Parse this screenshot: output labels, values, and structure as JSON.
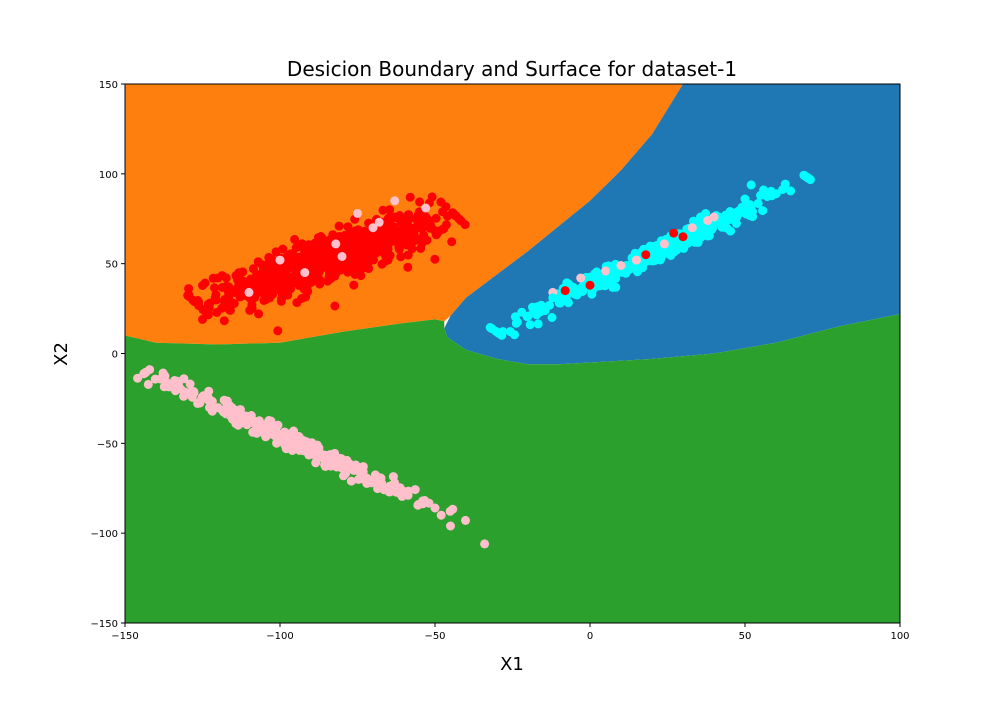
{
  "chart_data": {
    "type": "scatter",
    "title": "Desicion Boundary and Surface for dataset-1",
    "xlabel": "X1",
    "ylabel": "X2",
    "xlim": [
      -150,
      100
    ],
    "ylim": [
      -150,
      150
    ],
    "x_ticks": [
      -150,
      -100,
      -50,
      0,
      50,
      100
    ],
    "y_ticks": [
      -150,
      -100,
      -50,
      0,
      50,
      100,
      150
    ],
    "x_tick_labels": [
      "−150",
      "−100",
      "−50",
      "0",
      "50",
      "100"
    ],
    "y_tick_labels": [
      "−150",
      "−100",
      "−50",
      "0",
      "50",
      "100",
      "150"
    ],
    "grid": false,
    "regions": [
      {
        "color": "#ff7f0e",
        "polygon": [
          [
            -150,
            150
          ],
          [
            -150,
            10
          ],
          [
            -140,
            6
          ],
          [
            -120,
            5
          ],
          [
            -100,
            6
          ],
          [
            -80,
            12
          ],
          [
            -60,
            17
          ],
          [
            -50,
            19
          ],
          [
            -47,
            18
          ],
          [
            -45,
            21
          ],
          [
            -40,
            31
          ],
          [
            -30,
            44
          ],
          [
            -20,
            57
          ],
          [
            -10,
            71
          ],
          [
            0,
            85
          ],
          [
            10,
            102
          ],
          [
            20,
            122
          ],
          [
            30,
            150
          ]
        ]
      },
      {
        "color": "#1f77b4",
        "polygon": [
          [
            30,
            150
          ],
          [
            20,
            122
          ],
          [
            10,
            102
          ],
          [
            0,
            85
          ],
          [
            -10,
            71
          ],
          [
            -20,
            57
          ],
          [
            -30,
            44
          ],
          [
            -40,
            31
          ],
          [
            -45,
            21
          ],
          [
            -47,
            14
          ],
          [
            -46,
            9
          ],
          [
            -40,
            2
          ],
          [
            -30,
            -3
          ],
          [
            -20,
            -6
          ],
          [
            -10,
            -6
          ],
          [
            0,
            -5
          ],
          [
            20,
            -3
          ],
          [
            40,
            0
          ],
          [
            60,
            6
          ],
          [
            80,
            15
          ],
          [
            100,
            22
          ],
          [
            100,
            150
          ]
        ]
      },
      {
        "color": "#2ca02c",
        "polygon": [
          [
            -150,
            10
          ],
          [
            -140,
            6
          ],
          [
            -120,
            5
          ],
          [
            -100,
            6
          ],
          [
            -80,
            12
          ],
          [
            -60,
            17
          ],
          [
            -50,
            19
          ],
          [
            -47,
            18
          ],
          [
            -47,
            14
          ],
          [
            -46,
            9
          ],
          [
            -40,
            2
          ],
          [
            -30,
            -3
          ],
          [
            -20,
            -6
          ],
          [
            -10,
            -6
          ],
          [
            0,
            -5
          ],
          [
            20,
            -3
          ],
          [
            40,
            0
          ],
          [
            60,
            6
          ],
          [
            80,
            15
          ],
          [
            100,
            22
          ],
          [
            100,
            -150
          ],
          [
            -150,
            -150
          ]
        ]
      }
    ],
    "clusters": [
      {
        "color": "#ff0000",
        "count": 700,
        "center": [
          -85,
          52
        ],
        "major": [
          1,
          0.62
        ],
        "spread_major": 22,
        "spread_minor": 6
      },
      {
        "color": "#00ffff",
        "count": 300,
        "center": [
          20,
          55
        ],
        "major": [
          1,
          0.86
        ],
        "spread_major": 30,
        "spread_minor": 2.5
      },
      {
        "color": "#ffc0cb",
        "count": 300,
        "center": [
          -92,
          -52
        ],
        "major": [
          1,
          -0.81
        ],
        "spread_major": 30,
        "spread_minor": 2
      }
    ],
    "pinned_points": [
      {
        "color": "#ff0000",
        "points": [
          [
            -125,
            19
          ],
          [
            -120,
            42
          ],
          [
            -116,
            24
          ],
          [
            -58,
            87
          ],
          [
            -109,
            25
          ],
          [
            -75,
            64
          ],
          [
            -8,
            35
          ],
          [
            0,
            38
          ],
          [
            18,
            55
          ],
          [
            30,
            65
          ],
          [
            27,
            67
          ]
        ]
      },
      {
        "color": "#ffc0cb",
        "points": [
          [
            -53,
            81
          ],
          [
            -63,
            85
          ],
          [
            -75,
            78
          ],
          [
            -100,
            52
          ],
          [
            -110,
            34
          ],
          [
            -92,
            45
          ],
          [
            -80,
            54
          ],
          [
            -70,
            70
          ],
          [
            -68,
            73
          ],
          [
            -82,
            61
          ],
          [
            -12,
            34
          ],
          [
            -3,
            42
          ],
          [
            5,
            46
          ],
          [
            10,
            49
          ],
          [
            15,
            52
          ],
          [
            24,
            61
          ],
          [
            33,
            70
          ],
          [
            38,
            74
          ],
          [
            40,
            76
          ],
          [
            -134,
            -15
          ],
          [
            -131,
            -14
          ],
          [
            -129,
            -17
          ],
          [
            -123,
            -21
          ],
          [
            -45,
            -96
          ],
          [
            -48,
            -90
          ],
          [
            -34,
            -106
          ],
          [
            -50,
            -86
          ],
          [
            -118,
            -26
          ]
        ]
      },
      {
        "color": "#00ffff",
        "points": [
          [
            -22,
            23
          ],
          [
            -17,
            26
          ],
          [
            56,
            91
          ],
          [
            55,
            88
          ],
          [
            -12,
            31
          ],
          [
            50,
            86
          ]
        ]
      }
    ]
  }
}
